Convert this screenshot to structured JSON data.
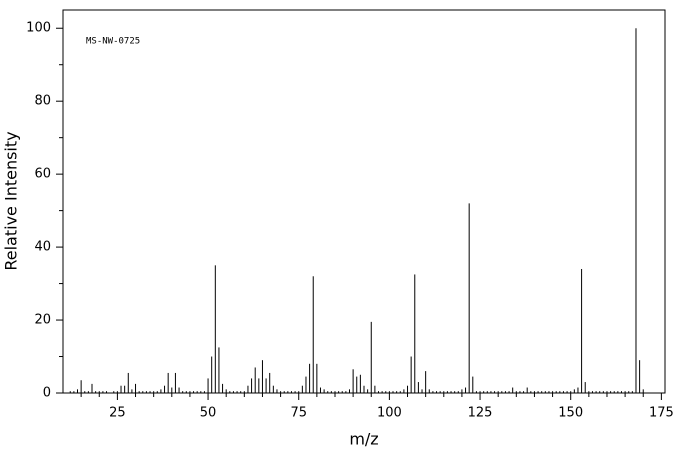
{
  "chart_data": {
    "type": "stick",
    "annotation": "MS-NW-0725",
    "xlabel": "m/z",
    "ylabel": "Relative Intensity",
    "x": [
      12,
      13,
      14,
      15,
      16,
      17,
      18,
      19,
      20,
      21,
      22,
      24,
      25,
      26,
      27,
      28,
      29,
      30,
      31,
      32,
      33,
      34,
      35,
      36,
      37,
      38,
      39,
      40,
      41,
      42,
      43,
      44,
      45,
      46,
      47,
      48,
      49,
      50,
      51,
      52,
      53,
      54,
      55,
      56,
      57,
      58,
      59,
      60,
      61,
      62,
      63,
      64,
      65,
      66,
      67,
      68,
      69,
      70,
      71,
      72,
      73,
      74,
      75,
      76,
      77,
      78,
      79,
      80,
      81,
      82,
      83,
      84,
      85,
      86,
      87,
      88,
      89,
      90,
      91,
      92,
      93,
      94,
      95,
      96,
      97,
      98,
      99,
      100,
      101,
      102,
      103,
      104,
      105,
      106,
      107,
      108,
      109,
      110,
      111,
      112,
      113,
      114,
      115,
      116,
      117,
      118,
      119,
      120,
      121,
      122,
      123,
      124,
      125,
      126,
      127,
      128,
      129,
      130,
      131,
      132,
      133,
      134,
      135,
      136,
      137,
      138,
      139,
      140,
      141,
      142,
      143,
      144,
      145,
      146,
      147,
      148,
      149,
      150,
      151,
      152,
      153,
      154,
      155,
      156,
      157,
      158,
      159,
      160,
      161,
      162,
      163,
      164,
      165,
      166,
      167,
      168,
      169,
      170
    ],
    "values": [
      0.5,
      0.5,
      1,
      3.5,
      0.5,
      0.5,
      2.5,
      0.5,
      0.5,
      0.5,
      0.5,
      0.5,
      0.5,
      2,
      2,
      5.5,
      1,
      2.5,
      0.5,
      0.5,
      0.5,
      0.5,
      0.5,
      0.5,
      1,
      2,
      5.5,
      1.5,
      5.5,
      1.5,
      0.5,
      0.5,
      0.5,
      0.5,
      0.5,
      0.5,
      0.5,
      4,
      10,
      35,
      12.5,
      2.5,
      1,
      0.5,
      0.5,
      0.5,
      0.5,
      0.5,
      2,
      4,
      7,
      4,
      9,
      4,
      5.5,
      2,
      1,
      0.5,
      0.5,
      0.5,
      0.5,
      0.5,
      0.5,
      2,
      4.5,
      8,
      32,
      8,
      1.5,
      1,
      0.5,
      0.5,
      0.5,
      0.5,
      0.5,
      0.5,
      1,
      6.5,
      4.5,
      5,
      2,
      1,
      19.5,
      2,
      0.5,
      0.5,
      0.5,
      0.5,
      0.5,
      0.5,
      0.5,
      1,
      2,
      10,
      32.5,
      3,
      1,
      6,
      1,
      0.5,
      0.5,
      0.5,
      0.5,
      0.5,
      0.5,
      0.5,
      0.5,
      1,
      1.5,
      52,
      4.5,
      0.5,
      0.5,
      0.5,
      0.5,
      0.5,
      0.5,
      0.5,
      0.5,
      0.5,
      0.5,
      1.5,
      0.5,
      0.5,
      0.5,
      1.5,
      0.5,
      0.5,
      0.5,
      0.5,
      0.5,
      0.5,
      0.5,
      0.5,
      0.5,
      0.5,
      0.5,
      0.5,
      1,
      1.5,
      34,
      3,
      0.5,
      0.5,
      0.5,
      0.5,
      0.5,
      0.5,
      0.5,
      0.5,
      0.5,
      0.5,
      0.5,
      0.5,
      0.5,
      100,
      9,
      1
    ],
    "color": "#000000",
    "xlim": [
      10,
      176
    ],
    "ylim": [
      0,
      105
    ],
    "xticks": [
      25,
      50,
      75,
      100,
      125,
      150,
      175
    ],
    "yticks": [
      0,
      20,
      40,
      60,
      80,
      100
    ],
    "xminorticks": [
      15,
      20,
      30,
      35,
      40,
      45,
      55,
      60,
      65,
      70,
      80,
      85,
      90,
      95,
      105,
      110,
      115,
      120,
      130,
      135,
      140,
      145,
      155,
      160,
      165,
      170
    ],
    "yminorticks": [
      10,
      30,
      50,
      70,
      90
    ]
  }
}
